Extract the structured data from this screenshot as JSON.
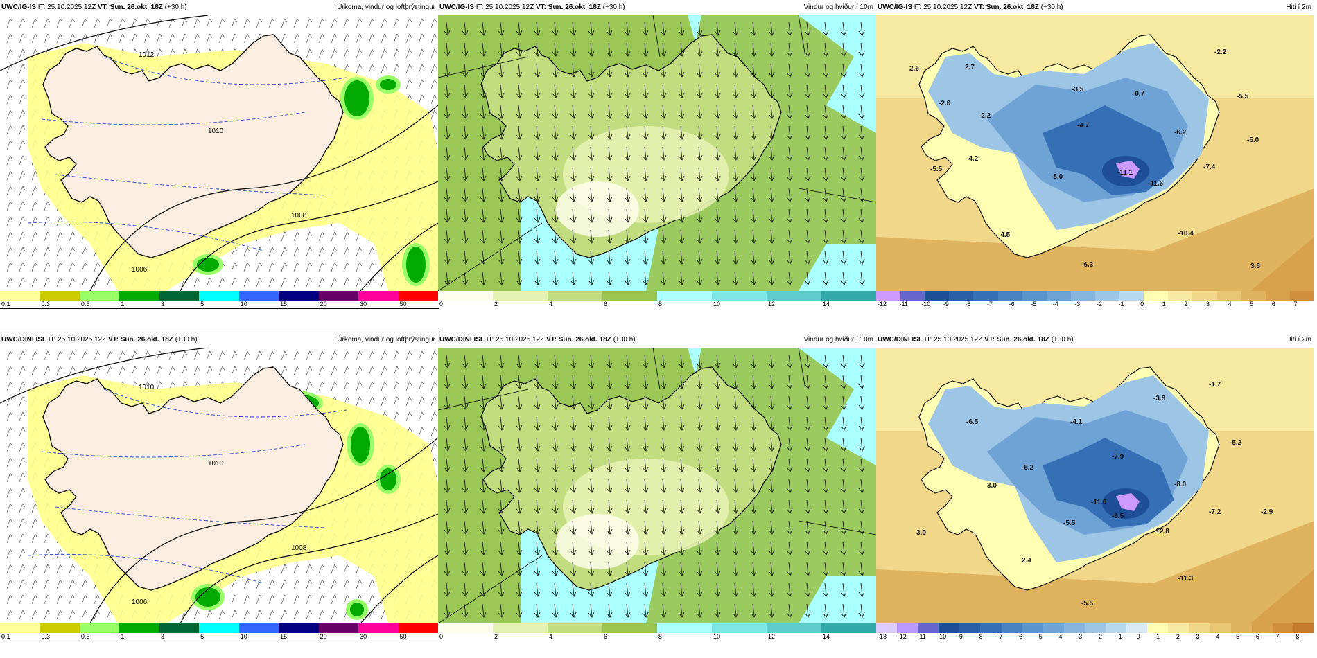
{
  "panels": [
    {
      "id": "p1",
      "model": "UWC/IG-IS",
      "it": "IT: 25.10.2025 12Z",
      "vt_label": "VT:",
      "vt": "Sun. 26.okt. 18Z",
      "lead": "(+30 h)",
      "right": "Úrkoma, vindur og loftþrýstingur",
      "type": "precip",
      "framed": true,
      "isobars": [
        "1012",
        "1010",
        "1008",
        "1006"
      ]
    },
    {
      "id": "p2",
      "model": "UWC/IG-IS",
      "it": "IT: 25.10.2025 12Z",
      "vt_label": "VT:",
      "vt": "Sun. 26.okt. 18Z",
      "lead": "(+30 h)",
      "right": "Vindur og hviður í 10m",
      "type": "wind",
      "framed": false
    },
    {
      "id": "p3",
      "model": "UWC/IG-IS",
      "it": "IT: 25.10.2025 12Z",
      "vt_label": "VT:",
      "vt": "Sun. 26.okt. 18Z",
      "lead": "(+30 h)",
      "right": "Hiti í 2m",
      "type": "temp",
      "framed": false,
      "values": [
        "2.6",
        "2.7",
        "-2.6",
        "-2.2",
        "-4.2",
        "-5.5",
        "-3.5",
        "-0.7",
        "-4.7",
        "-6.2",
        "-5.5",
        "-5.0",
        "-2.2",
        "-8.0",
        "-11.1",
        "-11.6",
        "-7.4",
        "-4.5",
        "-10.4",
        "-6.3",
        "3.8"
      ]
    },
    {
      "id": "p4",
      "model": "UWC/DINI ISL",
      "it": "IT: 25.10.2025 12Z",
      "vt_label": "VT:",
      "vt": "Sun. 26.okt. 18Z",
      "lead": "(+30 h)",
      "right": "Úrkoma, vindur og loftþrýstingur",
      "type": "precip",
      "framed": true,
      "isobars": [
        "1010",
        "1010",
        "1008",
        "1006"
      ]
    },
    {
      "id": "p5",
      "model": "UWC/DINI ISL",
      "it": "IT: 25.10.2025 12Z",
      "vt_label": "VT:",
      "vt": "Sun. 26.okt. 18Z",
      "lead": "(+30 h)",
      "right": "Vindur og hviður í 10m",
      "type": "wind",
      "framed": false
    },
    {
      "id": "p6",
      "model": "UWC/DINI ISL",
      "it": "IT: 25.10.2025 12Z",
      "vt_label": "VT:",
      "vt": "Sun. 26.okt. 18Z",
      "lead": "(+30 h)",
      "right": "Hiti í 2m",
      "type": "temp",
      "framed": false,
      "values": [
        "-6.5",
        "-4.1",
        "-3.8",
        "-1.7",
        "-5.2",
        "-7.9",
        "-5.2",
        "3.0",
        "-8.0",
        "-5.5",
        "-9.5",
        "-11.6",
        "-12.8",
        "-7.2",
        "-2.9",
        "3.0",
        "2.4",
        "-11.3",
        "-5.5"
      ]
    }
  ],
  "legends": {
    "precip": {
      "colors": [
        "#ffff99",
        "#cccc00",
        "#99ff66",
        "#00aa00",
        "#006633",
        "#00ffff",
        "#3366ff",
        "#000080",
        "#660066",
        "#ff0099",
        "#ff0000"
      ],
      "ticks": [
        "0.1",
        "0.3",
        "0.5",
        "1",
        "3",
        "5",
        "10",
        "15",
        "20",
        "30",
        "50"
      ]
    },
    "wind": {
      "colors": [
        "#ffffee",
        "#e6f2b3",
        "#c2dd80",
        "#99c44d",
        "#aaffff",
        "#7fe6e6",
        "#5fcccc",
        "#33aaaa"
      ],
      "ticks": [
        "0",
        "2",
        "4",
        "6",
        "8",
        "10",
        "12",
        "14"
      ]
    },
    "temp_top": {
      "colors": [
        "#cc99ff",
        "#6666cc",
        "#1f4e99",
        "#2a5fa8",
        "#3570b6",
        "#4a82c2",
        "#5b93cc",
        "#6fa3d6",
        "#85b4de",
        "#9cc5e6",
        "#b8d8ee",
        "#ffffb3",
        "#f7e9a0",
        "#f0d78a",
        "#e8c673",
        "#e0b45f",
        "#d8a24d",
        "#d08e3c"
      ],
      "ticks": [
        "-12",
        "-11",
        "-10",
        "-9",
        "-8",
        "-7",
        "-6",
        "-5",
        "-4",
        "-3",
        "-2",
        "-1",
        "0",
        "1",
        "2",
        "3",
        "4",
        "5",
        "6",
        "7"
      ]
    },
    "temp_bottom": {
      "colors": [
        "#ddccff",
        "#bb99ff",
        "#6666cc",
        "#1f4e99",
        "#2a5fa8",
        "#3570b6",
        "#4a82c2",
        "#5b93cc",
        "#6fa3d6",
        "#85b4de",
        "#9cc5e6",
        "#b8d8ee",
        "#d9eaf5",
        "#ffffb3",
        "#f7e9a0",
        "#f0d78a",
        "#e8c673",
        "#e0b45f",
        "#d8a24d",
        "#d08e3c",
        "#c47a2c"
      ],
      "ticks": [
        "-13",
        "-12",
        "-11",
        "-10",
        "-9",
        "-8",
        "-7",
        "-6",
        "-5",
        "-4",
        "-3",
        "-2",
        "-1",
        "0",
        "1",
        "2",
        "3",
        "4",
        "5",
        "6",
        "7",
        "8"
      ]
    }
  }
}
